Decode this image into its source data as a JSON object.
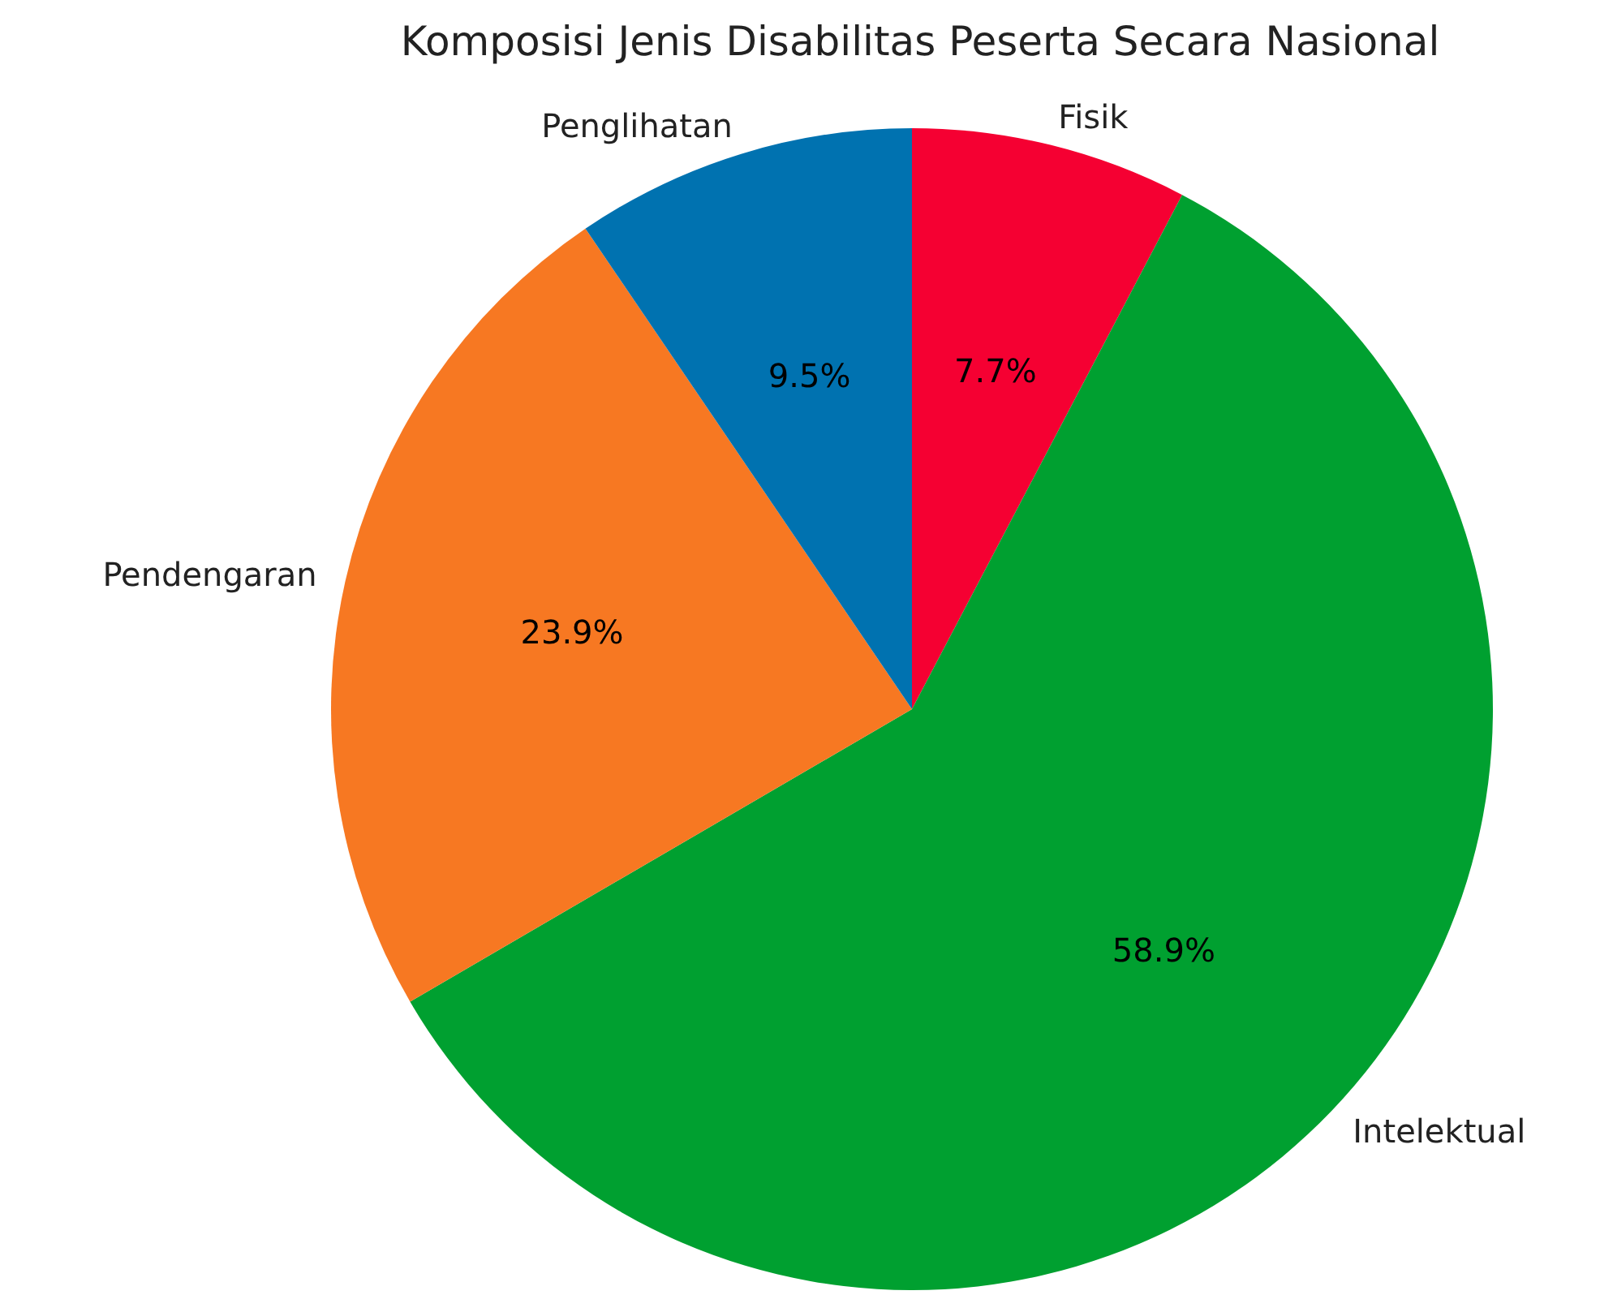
{
  "chart_data": {
    "type": "pie",
    "title": "Komposisi Jenis Disabilitas Peserta Secara Nasional",
    "categories": [
      "Fisik",
      "Intelektual",
      "Pendengaran",
      "Penglihatan"
    ],
    "values": [
      7.7,
      58.9,
      23.9,
      9.5
    ],
    "colors": [
      "#f50032",
      "#00a030",
      "#f77822",
      "#0072b0"
    ],
    "value_labels": [
      "7.7%",
      "58.9%",
      "23.9%",
      "9.5%"
    ],
    "legend": false
  }
}
